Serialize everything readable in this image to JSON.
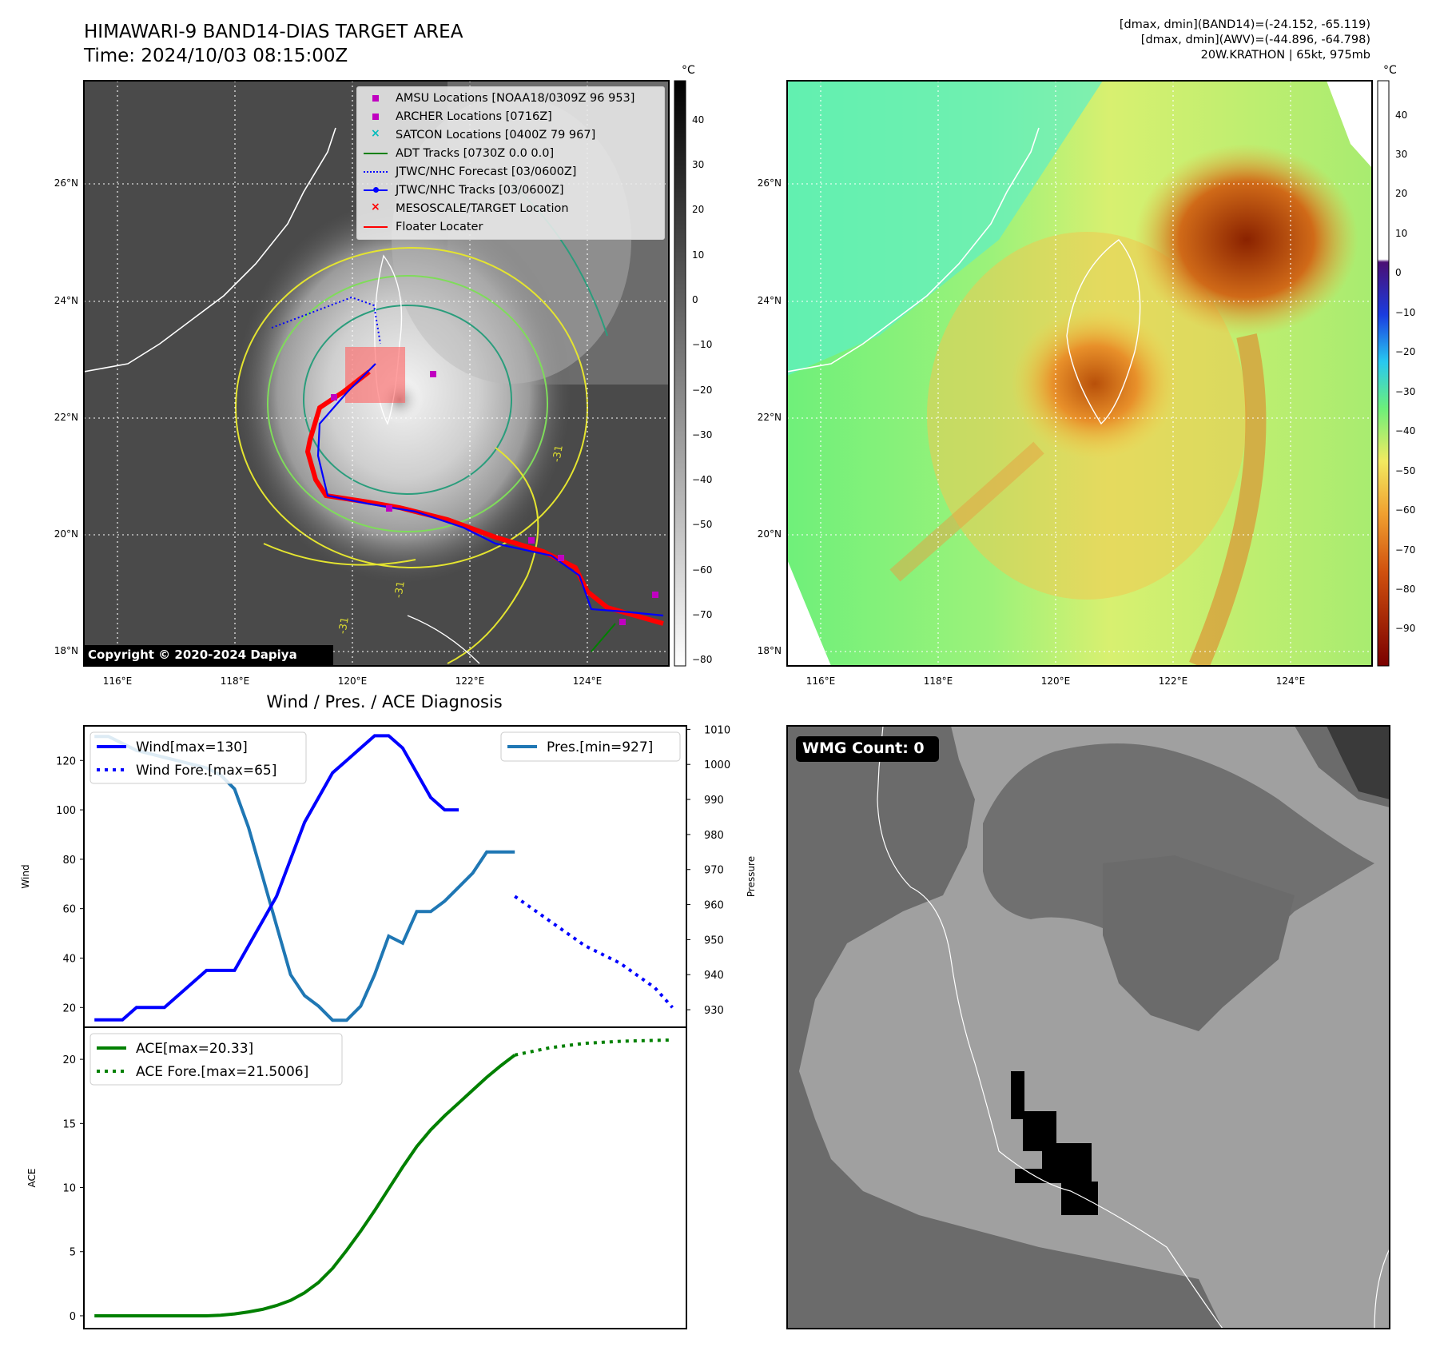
{
  "header": {
    "title_line1": "HIMAWARI-9 BAND14-DIAS TARGET AREA",
    "title_line2": "Time: 2024/10/03 08:15:00Z",
    "info_line1": "[dmax, dmin](BAND14)=(-24.152, -65.119)",
    "info_line2": "[dmax, dmin](AWV)=(-44.896, -64.798)",
    "info_line3": "20W.KRATHON | 65kt, 975mb"
  },
  "map": {
    "lon_ticks": [
      "116°E",
      "118°E",
      "120°E",
      "122°E",
      "124°E"
    ],
    "lat_ticks": [
      "26°N",
      "24°N",
      "22°N",
      "20°N",
      "18°N"
    ],
    "copyright": "Copyright © 2020-2024 Dapiya",
    "unit": "°C",
    "colorbar_gray_ticks": [
      "40",
      "30",
      "20",
      "10",
      "0",
      "−10",
      "−20",
      "−30",
      "−40",
      "−50",
      "−60",
      "−70",
      "−80"
    ],
    "colorbar_color_ticks": [
      "40",
      "30",
      "20",
      "10",
      "0",
      "−10",
      "−20",
      "−30",
      "−40",
      "−50",
      "−60",
      "−70",
      "−80",
      "−90"
    ],
    "legend": [
      {
        "label": "AMSU Locations [NOAA18/0309Z 96 953]",
        "marker": "square",
        "color": "#c000c0"
      },
      {
        "label": "ARCHER Locations [0716Z]",
        "marker": "square",
        "color": "#c000c0"
      },
      {
        "label": "SATCON Locations [0400Z 79 967]",
        "marker": "x",
        "color": "#00bcbc"
      },
      {
        "label": "ADT Tracks [0730Z 0.0 0.0]",
        "marker": "line",
        "color": "#008000"
      },
      {
        "label": "JTWC/NHC Forecast [03/0600Z]",
        "marker": "dotted",
        "color": "#0000ff"
      },
      {
        "label": "JTWC/NHC Tracks [03/0600Z]",
        "marker": "line-dot",
        "color": "#0000ff"
      },
      {
        "label": "MESOSCALE/TARGET Location",
        "marker": "x",
        "color": "#ff0000"
      },
      {
        "label": "Floater Locater",
        "marker": "line",
        "color": "#ff0000"
      }
    ],
    "contour_labels": [
      "-31",
      "-31",
      "-31"
    ]
  },
  "wmg": {
    "badge": "WMG Count: 0"
  },
  "chart_data": [
    {
      "type": "line",
      "title": "Wind / Pres. / ACE Diagnosis",
      "ylabel": "Wind",
      "y2label": "Pressure",
      "ylim": [
        12,
        134
      ],
      "y2lim": [
        925,
        1011
      ],
      "yticks": [
        20,
        40,
        60,
        80,
        100,
        120
      ],
      "y2ticks": [
        930,
        940,
        950,
        960,
        970,
        980,
        990,
        1000,
        1010
      ],
      "series": [
        {
          "name": "Wind[max=130]",
          "axis": "left",
          "color": "#0000ff",
          "style": "solid",
          "x": [
            0,
            4,
            8,
            12,
            16,
            20,
            24,
            28,
            32,
            36,
            40,
            44,
            48,
            52,
            56,
            60,
            64,
            68,
            72,
            76,
            80,
            84,
            88,
            92,
            96,
            100,
            104
          ],
          "values": [
            15,
            15,
            15,
            20,
            20,
            20,
            25,
            30,
            35,
            35,
            35,
            45,
            55,
            65,
            80,
            95,
            105,
            115,
            120,
            125,
            130,
            130,
            125,
            115,
            105,
            100,
            100
          ]
        },
        {
          "name": "Wind Fore.[max=65]",
          "axis": "left",
          "color": "#0000ff",
          "style": "dotted",
          "x": [
            120,
            130,
            140,
            150,
            160,
            165
          ],
          "values": [
            65,
            55,
            45,
            38,
            28,
            20
          ]
        },
        {
          "name": "Pres.[min=927]",
          "axis": "right",
          "color": "#1f77b4",
          "style": "solid",
          "x": [
            0,
            4,
            8,
            12,
            16,
            20,
            24,
            28,
            32,
            36,
            40,
            44,
            48,
            52,
            56,
            60,
            64,
            68,
            72,
            76,
            80,
            84,
            88,
            92,
            96,
            100,
            104,
            108,
            112,
            116,
            120
          ],
          "values": [
            1008,
            1008,
            1006,
            1004,
            1003,
            1002,
            1001,
            1000,
            999,
            997,
            993,
            982,
            968,
            954,
            940,
            934,
            931,
            927,
            927,
            931,
            940,
            951,
            949,
            958,
            958,
            961,
            965,
            969,
            975,
            975,
            975
          ]
        }
      ]
    },
    {
      "type": "line",
      "ylabel": "ACE",
      "ylim": [
        -1,
        22.5
      ],
      "yticks": [
        0,
        5,
        10,
        15,
        20
      ],
      "series": [
        {
          "name": "ACE[max=20.33]",
          "color": "#008000",
          "style": "solid",
          "x": [
            0,
            4,
            8,
            12,
            16,
            20,
            24,
            28,
            32,
            36,
            40,
            44,
            48,
            52,
            56,
            60,
            64,
            68,
            72,
            76,
            80,
            84,
            88,
            92,
            96,
            100,
            104,
            108,
            112,
            116,
            120
          ],
          "values": [
            0,
            0,
            0,
            0,
            0,
            0,
            0,
            0,
            0,
            0.05,
            0.15,
            0.3,
            0.5,
            0.8,
            1.2,
            1.8,
            2.6,
            3.7,
            5.1,
            6.6,
            8.2,
            9.9,
            11.6,
            13.2,
            14.5,
            15.6,
            16.6,
            17.6,
            18.6,
            19.5,
            20.33
          ]
        },
        {
          "name": "ACE Fore.[max=21.5006]",
          "color": "#008000",
          "style": "dotted",
          "x": [
            120,
            130,
            140,
            150,
            160,
            165
          ],
          "values": [
            20.33,
            20.9,
            21.25,
            21.4,
            21.48,
            21.5006
          ]
        }
      ]
    }
  ]
}
